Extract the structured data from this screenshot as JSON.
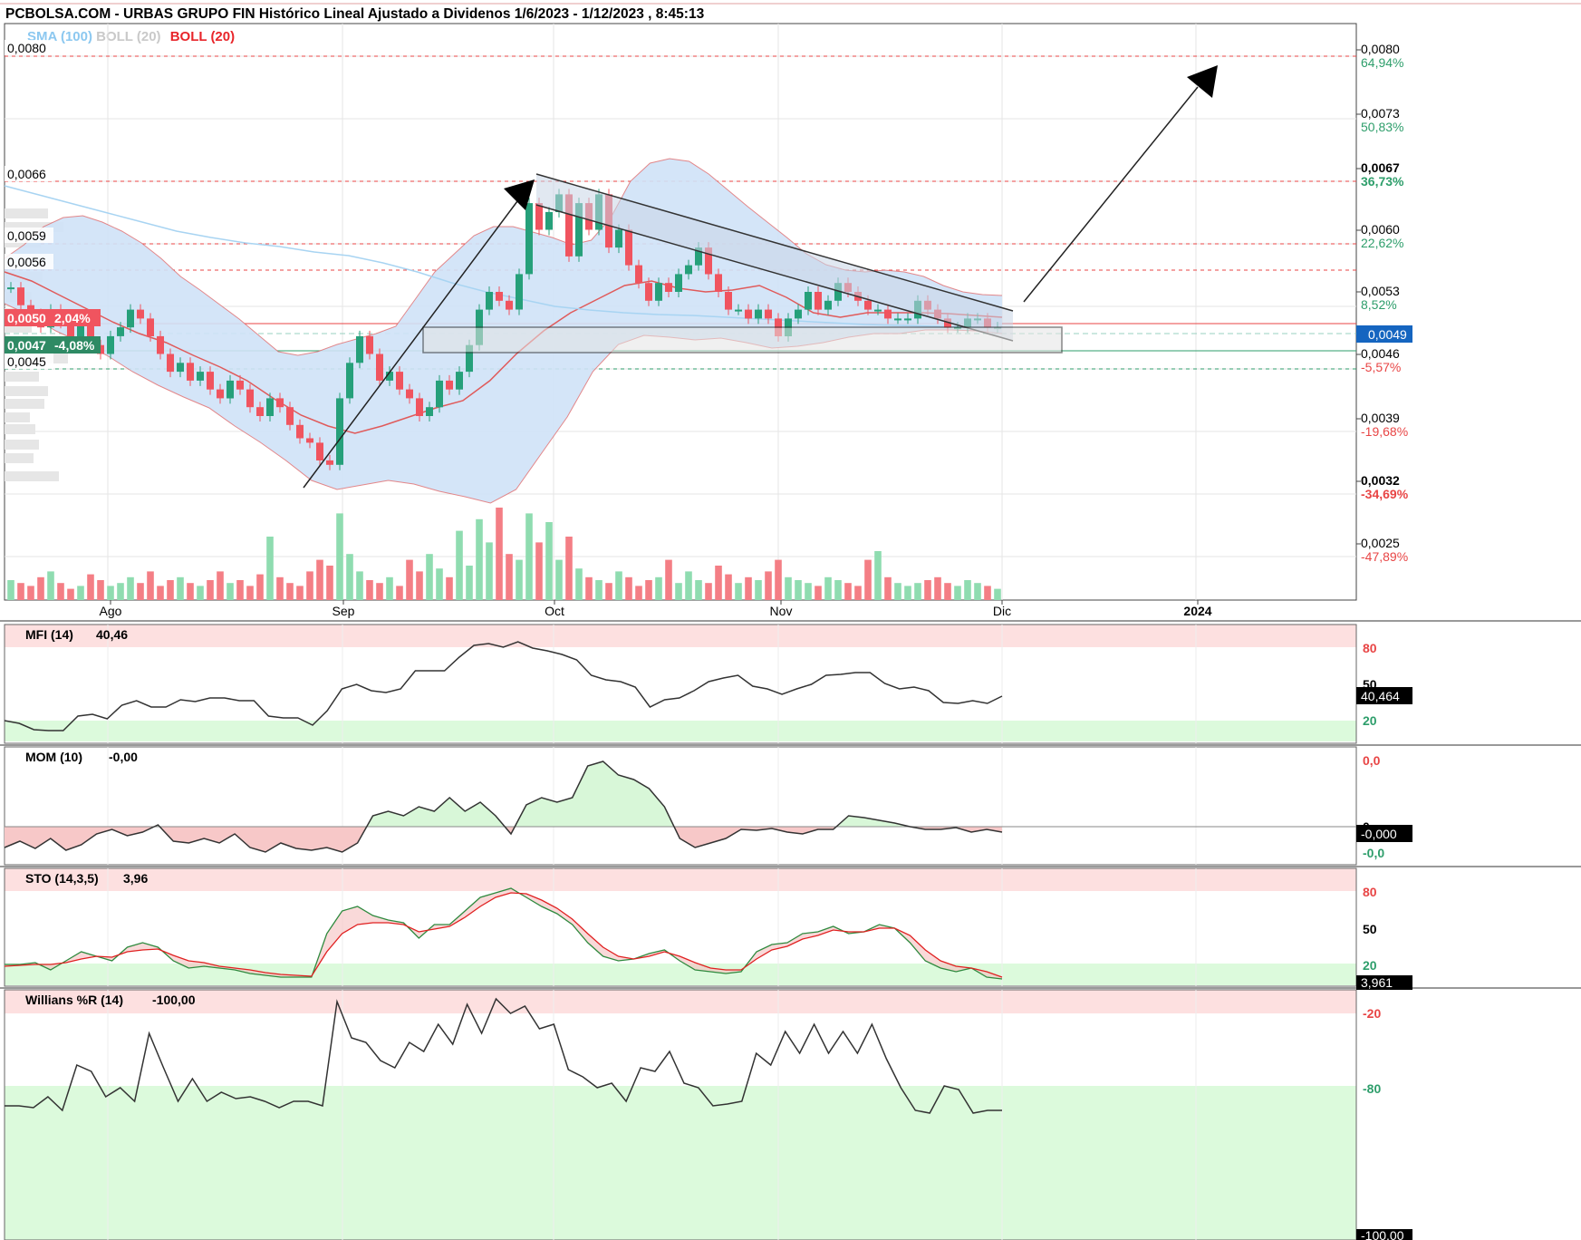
{
  "title": "PCBOLSA.COM - URBAS GRUPO FIN Histórico Lineal Ajustado a Dividenos 1/6/2023 - 1/12/2023 , 8:45:13",
  "legend": {
    "sma": "SMA (100)",
    "boll_gray": "BOLL (20)",
    "boll_red": "BOLL (20)"
  },
  "colors": {
    "up": "#26a07a",
    "down": "#f0545f",
    "band_fill": "#cfe2f7",
    "sma": "#a8d4f2",
    "boll": "#e05a5a",
    "axis_text": "#000000",
    "pos": "#2e9e6b",
    "neg": "#e84545"
  },
  "left_price_labels": [
    "0,0080",
    "0,0066",
    "0,0059",
    "0,0056",
    "0,0045"
  ],
  "left_tags": [
    {
      "text": "0,0050",
      "pct": "2,04%",
      "color": "#f0545f"
    },
    {
      "text": "0,0047",
      "pct": "-4,08%",
      "color": "#2e8a64"
    }
  ],
  "right_axis": [
    {
      "price": "0,0080",
      "pct": "64,94%",
      "bold": false
    },
    {
      "price": "0,0073",
      "pct": "50,83%",
      "bold": false
    },
    {
      "price": "0,0067",
      "pct": "36,73%",
      "bold": true
    },
    {
      "price": "0,0060",
      "pct": "22,62%",
      "bold": false
    },
    {
      "price": "0,0053",
      "pct": "8,52%",
      "bold": false
    },
    {
      "price": "0,0046",
      "pct": "-5,57%",
      "bold": false
    },
    {
      "price": "0,0039",
      "pct": "-19,68%",
      "bold": false
    },
    {
      "price": "0,0032",
      "pct": "-34,69%",
      "bold": true
    },
    {
      "price": "0,0025",
      "pct": "-47,89%",
      "bold": false
    }
  ],
  "last_price_badge": "0,0049",
  "x_axis": [
    "Ago",
    "Sep",
    "Oct",
    "Nov",
    "Dic",
    "2024"
  ],
  "indicators": {
    "mfi": {
      "label": "MFI (14)",
      "value": "40,46",
      "badge": "40,464",
      "levels": [
        "80",
        "50",
        "20"
      ]
    },
    "mom": {
      "label": "MOM (10)",
      "value": "-0,00",
      "badge": "-0,000",
      "levels": [
        "0,0",
        "0",
        "-0,0"
      ]
    },
    "sto": {
      "label": "STO (14,3,5)",
      "value": "3,96",
      "badge": "3,961",
      "levels": [
        "80",
        "50",
        "20"
      ]
    },
    "wr": {
      "label": "Willians %R (14)",
      "value": "-100,00",
      "badge": "-100,00",
      "levels": [
        "-20",
        "-80"
      ]
    }
  },
  "chart_data": {
    "type": "candlestick",
    "x_range": [
      "2023-06-01",
      "2023-12-01"
    ],
    "y_range": [
      0.0018,
      0.0083
    ],
    "close": [
      0.00535,
      0.00515,
      0.00505,
      0.0049,
      0.0051,
      0.00495,
      0.0048,
      0.005,
      0.0047,
      0.0046,
      0.0048,
      0.0049,
      0.0051,
      0.005,
      0.0048,
      0.0046,
      0.0044,
      0.0045,
      0.0043,
      0.0044,
      0.0042,
      0.0041,
      0.0043,
      0.0042,
      0.004,
      0.0039,
      0.0041,
      0.004,
      0.0038,
      0.00365,
      0.0036,
      0.0034,
      0.00335,
      0.0041,
      0.0045,
      0.0048,
      0.0046,
      0.0043,
      0.0044,
      0.0042,
      0.0041,
      0.0039,
      0.004,
      0.0043,
      0.0042,
      0.0044,
      0.0047,
      0.0051,
      0.0053,
      0.0052,
      0.0051,
      0.0055,
      0.0063,
      0.006,
      0.0062,
      0.0064,
      0.0057,
      0.0063,
      0.006,
      0.0064,
      0.0058,
      0.006,
      0.0056,
      0.0054,
      0.0052,
      0.0054,
      0.0053,
      0.0055,
      0.0056,
      0.0058,
      0.0055,
      0.0053,
      0.0051,
      0.0051,
      0.005,
      0.0051,
      0.005,
      0.0048,
      0.005,
      0.0051,
      0.0053,
      0.0051,
      0.0052,
      0.0054,
      0.0053,
      0.0052,
      0.0051,
      0.0051,
      0.005,
      0.005,
      0.005,
      0.0052,
      0.0051,
      0.005,
      0.0049,
      0.0049,
      0.005,
      0.005,
      0.0049,
      0.0049
    ]
  }
}
